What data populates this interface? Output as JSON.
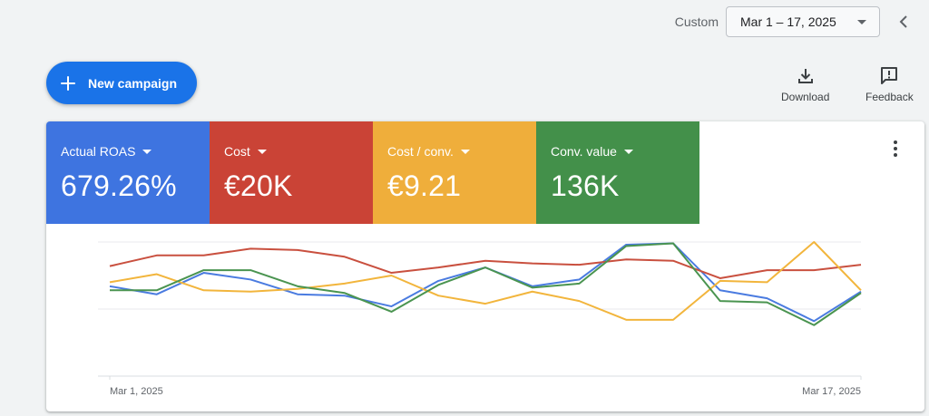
{
  "header": {
    "custom_label": "Custom",
    "date_range": "Mar 1 – 17, 2025"
  },
  "actions": {
    "new_campaign": "New campaign",
    "download": "Download",
    "feedback": "Feedback"
  },
  "metrics": [
    {
      "label": "Actual ROAS",
      "value": "679.26%",
      "color": "#3e74e0"
    },
    {
      "label": "Cost",
      "value": "€20K",
      "color": "#ca4336"
    },
    {
      "label": "Cost / conv.",
      "value": "€9.21",
      "color": "#efae3b"
    },
    {
      "label": "Conv. value",
      "value": "136K",
      "color": "#43904a"
    }
  ],
  "chart_data": {
    "type": "line",
    "x": [
      "Mar 1, 2025",
      "Mar 2, 2025",
      "Mar 3, 2025",
      "Mar 4, 2025",
      "Mar 5, 2025",
      "Mar 6, 2025",
      "Mar 7, 2025",
      "Mar 8, 2025",
      "Mar 9, 2025",
      "Mar 10, 2025",
      "Mar 11, 2025",
      "Mar 12, 2025",
      "Mar 13, 2025",
      "Mar 14, 2025",
      "Mar 15, 2025",
      "Mar 16, 2025",
      "Mar 17, 2025"
    ],
    "xtick_labels": [
      "Mar 1, 2025",
      "Mar 17, 2025"
    ],
    "ylim": [
      0,
      100
    ],
    "grid": true,
    "series": [
      {
        "metric": "Actual ROAS",
        "color": "#4a7be0",
        "values": [
          67,
          61,
          77,
          72,
          61,
          60,
          52,
          71,
          81,
          67,
          72,
          98,
          99,
          64,
          58,
          41,
          63
        ]
      },
      {
        "metric": "Cost",
        "color": "#c9503f",
        "values": [
          82,
          90,
          90,
          95,
          94,
          89,
          77,
          81,
          86,
          84,
          83,
          87,
          86,
          73,
          79,
          79,
          83
        ]
      },
      {
        "metric": "Cost / conv.",
        "color": "#f2b53c",
        "values": [
          70,
          76,
          64,
          63,
          65,
          69,
          75,
          60,
          54,
          63,
          56,
          42,
          42,
          71,
          70,
          100,
          64
        ]
      },
      {
        "metric": "Conv. value",
        "color": "#4a9450",
        "values": [
          64,
          64,
          79,
          79,
          67,
          62,
          48,
          68,
          81,
          66,
          69,
          97,
          99,
          56,
          55,
          38,
          62
        ]
      }
    ]
  }
}
